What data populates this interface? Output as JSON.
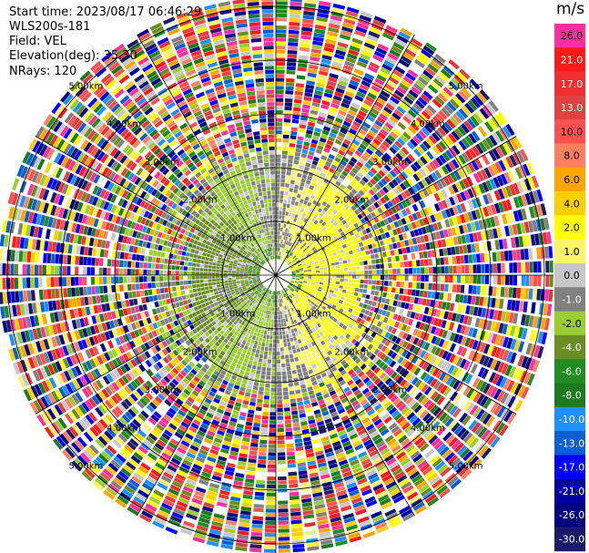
{
  "header": {
    "start_time": "Start time: 2023/08/17 06:46:29",
    "instrument": "WLS200s-181",
    "field": "Field: VEL",
    "elevation": "Elevation(deg): 35.30",
    "nrays": "NRays: 120"
  },
  "chart_data": {
    "type": "heatmap",
    "subtype": "polar-ppi",
    "field": "VEL",
    "unit": "m/s",
    "nrays": 120,
    "range_rings_km": [
      1.0,
      2.0,
      3.0,
      4.0,
      5.0
    ],
    "ring_labels": [
      "1.00km",
      "2.00km",
      "3.00km",
      "4.00km",
      "5.00km"
    ],
    "colorbar": {
      "label": "m/s",
      "ticks": [
        "26.0",
        "21.0",
        "17.0",
        "13.0",
        "10.0",
        "8.0",
        "6.0",
        "4.0",
        "2.0",
        "1.0",
        "0.0",
        "-1.0",
        "-2.0",
        "-4.0",
        "-6.0",
        "-8.0",
        "-10.0",
        "-13.0",
        "-17.0",
        "-21.0",
        "-26.0",
        "-30.0"
      ],
      "colors": [
        "#ff2f9f",
        "#ff1a1a",
        "#f03030",
        "#e04040",
        "#ff5050",
        "#ff8060",
        "#ffa500",
        "#ffd000",
        "#ffff00",
        "#fff36a",
        "#c8c8c8",
        "#808080",
        "#9acd32",
        "#6b8e23",
        "#228b22",
        "#1e7a1e",
        "#1e90ff",
        "#0a60d0",
        "#0000ff",
        "#0000a0",
        "#000080",
        "#1a1a6a"
      ]
    },
    "pattern": {
      "inner_near_zero_km": 1.9,
      "positive_lobe_azimuth_deg": 90,
      "negative_lobe_azimuth_deg": 270,
      "noise_beyond_km": 2.4
    }
  }
}
